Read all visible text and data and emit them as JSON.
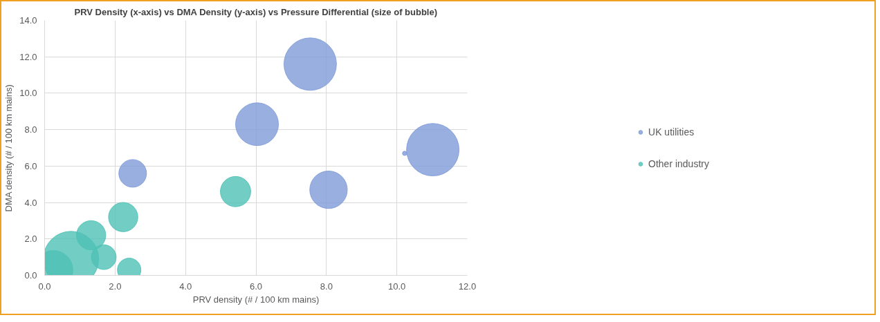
{
  "chart_data": {
    "type": "bubble",
    "title": "PRV Density (x-axis) vs DMA Density (y-axis) vs Pressure Differential (size of bubble)",
    "xlabel": "PRV density (# / 100 km mains)",
    "ylabel": "DMA density (# / 100 km mains)",
    "xlim": [
      0,
      12
    ],
    "ylim": [
      0,
      14
    ],
    "xticks": [
      {
        "value": 0,
        "label": "0.0"
      },
      {
        "value": 2,
        "label": "2.0"
      },
      {
        "value": 4,
        "label": "4.0"
      },
      {
        "value": 6,
        "label": "6.0"
      },
      {
        "value": 8,
        "label": "8.0"
      },
      {
        "value": 10,
        "label": "10.0"
      },
      {
        "value": 12,
        "label": "12.0"
      }
    ],
    "yticks": [
      {
        "value": 0,
        "label": "0.0"
      },
      {
        "value": 2,
        "label": "2.0"
      },
      {
        "value": 4,
        "label": "4.0"
      },
      {
        "value": 6,
        "label": "6.0"
      },
      {
        "value": 8,
        "label": "8.0"
      },
      {
        "value": 10,
        "label": "10.0"
      },
      {
        "value": 12,
        "label": "12.0"
      },
      {
        "value": 14,
        "label": "14.0"
      }
    ],
    "grid": true,
    "legend": "right",
    "series": [
      {
        "name": "UK utilities",
        "color": "#7f9bd8",
        "x": [
          2.5,
          6.03,
          7.54,
          8.06,
          10.22,
          11.02
        ],
        "values": [
          5.6,
          8.3,
          11.6,
          4.7,
          6.7,
          6.9
        ],
        "sizes": [
          0.25,
          0.6,
          0.9,
          0.46,
          0.006,
          0.9
        ]
      },
      {
        "name": "Other industry",
        "color": "#4fc1b5",
        "x": [
          0.25,
          0.75,
          1.32,
          1.68,
          2.23,
          2.4,
          5.42
        ],
        "values": [
          0.3,
          0.9,
          2.2,
          1.0,
          3.2,
          0.3,
          4.6
        ],
        "sizes": [
          0.49,
          1,
          0.28,
          0.2,
          0.28,
          0.18,
          0.3
        ]
      }
    ]
  }
}
